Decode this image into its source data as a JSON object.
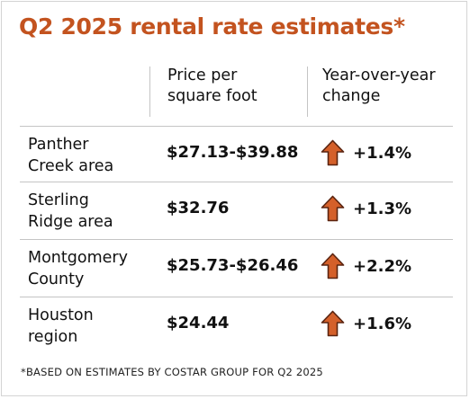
{
  "title": "Q2 2025 rental rate estimates*",
  "columns": {
    "price_header": [
      "Price per",
      "square foot"
    ],
    "change_header": [
      "Year-over-year",
      "change"
    ]
  },
  "rows": [
    {
      "label": [
        "Panther",
        "Creek area"
      ],
      "price": "$27.13-$39.88",
      "change": "+1.4%",
      "direction": "up"
    },
    {
      "label": [
        "Sterling",
        "Ridge area"
      ],
      "price": "$32.76",
      "change": "+1.3%",
      "direction": "up"
    },
    {
      "label": [
        "Montgomery",
        "County"
      ],
      "price": "$25.73-$26.46",
      "change": "+2.2%",
      "direction": "up"
    },
    {
      "label": [
        "Houston",
        "region"
      ],
      "price": "$24.44",
      "change": "+1.6%",
      "direction": "up"
    }
  ],
  "footnote": "*BASED ON ESTIMATES BY COSTAR GROUP FOR Q2 2025",
  "colors": {
    "accent": "#c3531f",
    "arrow_fill": "#d4602a",
    "arrow_stroke": "#5a2410",
    "divider": "#c4c4c4"
  },
  "icons": {
    "change_indicator": "up-arrow-icon"
  }
}
